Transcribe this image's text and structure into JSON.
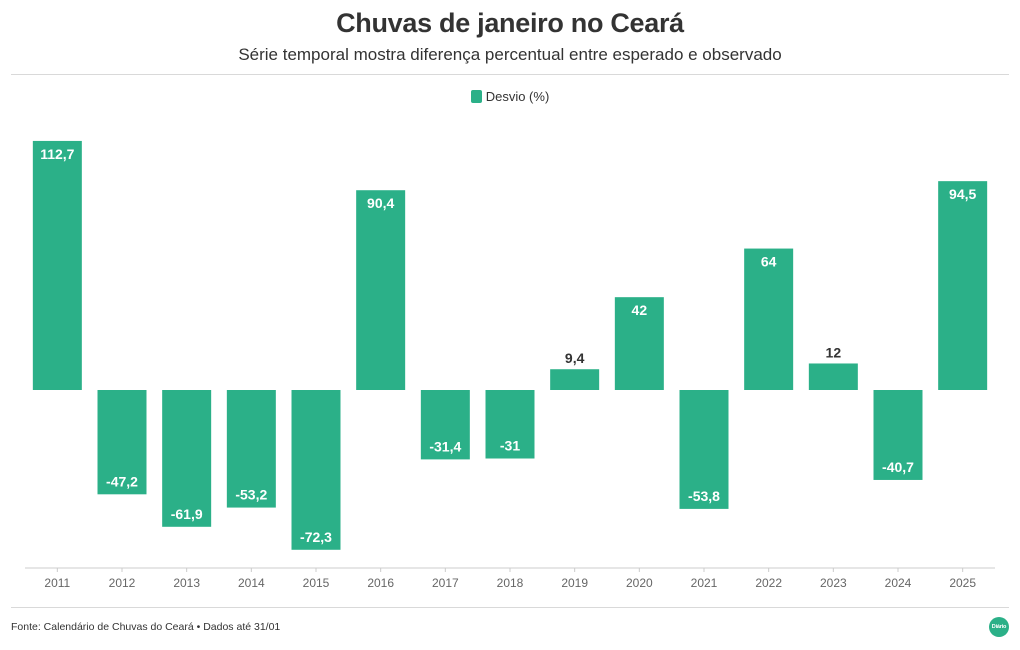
{
  "title": "Chuvas de janeiro no Ceará",
  "subtitle": "Série temporal mostra diferença percentual entre esperado e observado",
  "legend": {
    "label": "Desvio (%)"
  },
  "footer": {
    "source": "Fonte: Calendário de Chuvas do Ceará • Dados até 31/01"
  },
  "logo": {
    "text": "Diário"
  },
  "colors": {
    "bar": "#2bb088",
    "label_inside": "#ffffff",
    "label_outside": "#333333",
    "axis_text": "#666666",
    "axis_line": "#cccccc",
    "logo_bg": "#2bb088"
  },
  "chart_data": {
    "type": "bar",
    "categories": [
      "2011",
      "2012",
      "2013",
      "2014",
      "2015",
      "2016",
      "2017",
      "2018",
      "2019",
      "2020",
      "2021",
      "2022",
      "2023",
      "2024",
      "2025"
    ],
    "series": [
      {
        "name": "Desvio (%)",
        "values": [
          112.7,
          -47.2,
          -61.9,
          -53.2,
          -72.3,
          90.4,
          -31.4,
          -31,
          9.4,
          42,
          -53.8,
          64,
          12,
          -40.7,
          94.5
        ],
        "labels": [
          "112,7",
          "-47,2",
          "-61,9",
          "-53,2",
          "-72,3",
          "90,4",
          "-31,4",
          "-31",
          "9,4",
          "42",
          "-53,8",
          "64",
          "12",
          "-40,7",
          "94,5"
        ]
      }
    ],
    "ylim": [
      -80,
      113
    ],
    "grid": false,
    "legend_position": "top-center",
    "xlabel": "",
    "ylabel": ""
  }
}
